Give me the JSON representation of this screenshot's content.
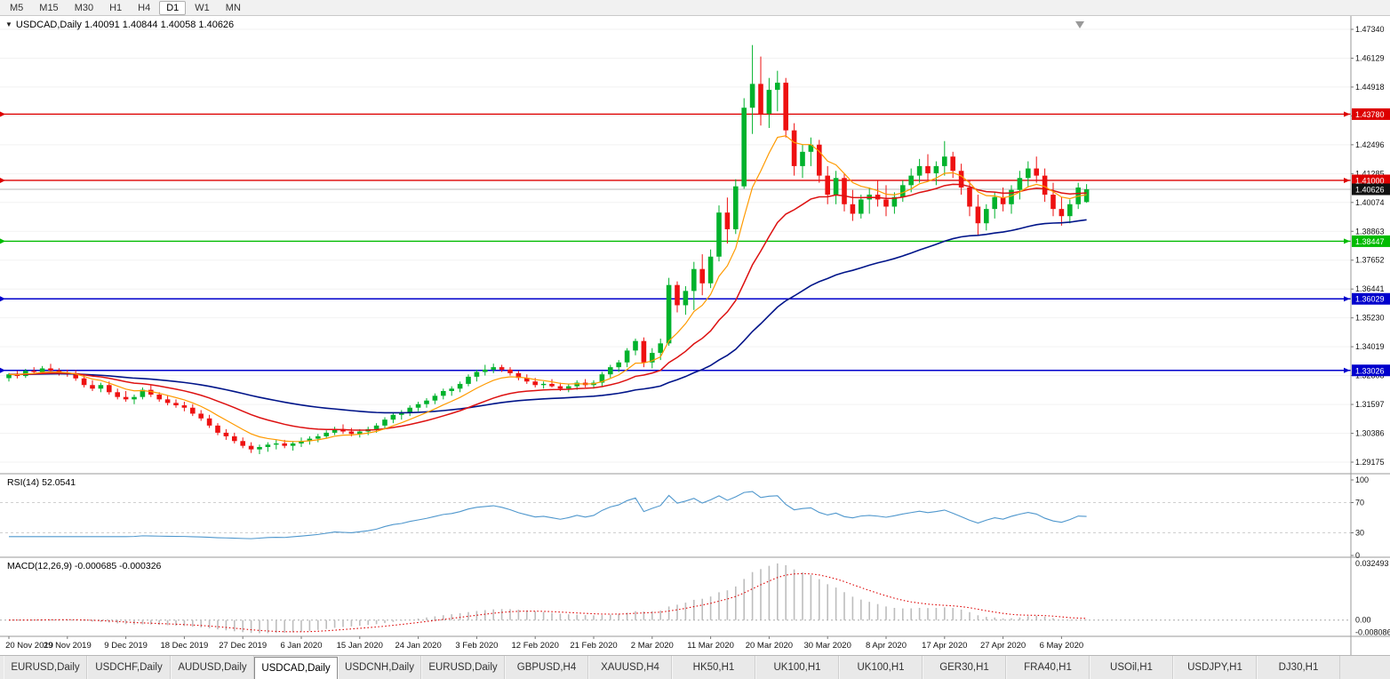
{
  "ui": {
    "menu_caret": "▼"
  },
  "toolbar": {
    "timeframes": [
      "M5",
      "M15",
      "M30",
      "H1",
      "H4",
      "D1",
      "W1",
      "MN"
    ],
    "active": "D1"
  },
  "chart": {
    "title": "USDCAD,Daily",
    "ohlc": "1.40091 1.40844 1.40058 1.40626"
  },
  "colors": {
    "up": "#00b22c",
    "down": "#ee1111",
    "ma_fast": "#ff9a00",
    "ma_mid": "#dd1111",
    "ma_slow": "#001489",
    "rsi": "#4f97cd",
    "macd_hist": "#bdbdbd",
    "macd_signal": "#dd0000",
    "grid": "#f2f2f2",
    "separator": "#9a9a9a",
    "axis_text": "#111111",
    "current_price_line": "#b8b8b8",
    "current_badge": "#111111",
    "rsi_level_line": "#cfcfcf",
    "tick": "#777777"
  },
  "chart_data": {
    "type": "candlestick",
    "title": "USDCAD,Daily",
    "price_axis": {
      "min": 1.29175,
      "max": 1.4734,
      "labels": [
        "1.47340",
        "1.46129",
        "1.44918",
        "1.43707",
        "1.42496",
        "1.41285",
        "1.40074",
        "1.38863",
        "1.37652",
        "1.36441",
        "1.35230",
        "1.34019",
        "1.32808",
        "1.31597",
        "1.30386",
        "1.29175"
      ]
    },
    "x_labels": [
      {
        "i": 0,
        "t": "20 Nov 2019"
      },
      {
        "i": 7,
        "t": "29 Nov 2019"
      },
      {
        "i": 14,
        "t": "9 Dec 2019"
      },
      {
        "i": 21,
        "t": "18 Dec 2019"
      },
      {
        "i": 28,
        "t": "27 Dec 2019"
      },
      {
        "i": 35,
        "t": "6 Jan 2020"
      },
      {
        "i": 42,
        "t": "15 Jan 2020"
      },
      {
        "i": 49,
        "t": "24 Jan 2020"
      },
      {
        "i": 56,
        "t": "3 Feb 2020"
      },
      {
        "i": 63,
        "t": "12 Feb 2020"
      },
      {
        "i": 70,
        "t": "21 Feb 2020"
      },
      {
        "i": 77,
        "t": "2 Mar 2020"
      },
      {
        "i": 84,
        "t": "11 Mar 2020"
      },
      {
        "i": 91,
        "t": "20 Mar 2020"
      },
      {
        "i": 98,
        "t": "30 Mar 2020"
      },
      {
        "i": 105,
        "t": "8 Apr 2020"
      },
      {
        "i": 112,
        "t": "17 Apr 2020"
      },
      {
        "i": 119,
        "t": "27 Apr 2020"
      },
      {
        "i": 126,
        "t": "6 May 2020"
      }
    ],
    "candles": [
      [
        1.327,
        1.3292,
        1.3256,
        1.3286
      ],
      [
        1.3286,
        1.3301,
        1.3269,
        1.3279
      ],
      [
        1.3279,
        1.3309,
        1.3271,
        1.3301
      ],
      [
        1.3301,
        1.3316,
        1.3286,
        1.3296
      ],
      [
        1.3296,
        1.3321,
        1.3287,
        1.3311
      ],
      [
        1.3311,
        1.333,
        1.3296,
        1.3302
      ],
      [
        1.3302,
        1.3312,
        1.3281,
        1.3291
      ],
      [
        1.3291,
        1.3306,
        1.3276,
        1.3286
      ],
      [
        1.3286,
        1.3304,
        1.3259,
        1.3269
      ],
      [
        1.3269,
        1.3281,
        1.3231,
        1.3241
      ],
      [
        1.3241,
        1.3261,
        1.3216,
        1.3226
      ],
      [
        1.3226,
        1.3251,
        1.3211,
        1.3241
      ],
      [
        1.3241,
        1.3256,
        1.3201,
        1.3211
      ],
      [
        1.3211,
        1.3226,
        1.3181,
        1.3191
      ],
      [
        1.3191,
        1.3216,
        1.3171,
        1.3181
      ],
      [
        1.3181,
        1.3201,
        1.3161,
        1.3191
      ],
      [
        1.3191,
        1.3231,
        1.3181,
        1.3221
      ],
      [
        1.3221,
        1.3241,
        1.3191,
        1.3201
      ],
      [
        1.3201,
        1.3211,
        1.3171,
        1.3181
      ],
      [
        1.3181,
        1.3196,
        1.3156,
        1.3166
      ],
      [
        1.3166,
        1.3181,
        1.3146,
        1.3156
      ],
      [
        1.3156,
        1.3171,
        1.3131,
        1.3146
      ],
      [
        1.3146,
        1.3161,
        1.3111,
        1.3121
      ],
      [
        1.3121,
        1.3136,
        1.3091,
        1.3101
      ],
      [
        1.3101,
        1.3116,
        1.3061,
        1.3071
      ],
      [
        1.3071,
        1.3081,
        1.3031,
        1.3041
      ],
      [
        1.3041,
        1.3056,
        1.3011,
        1.3026
      ],
      [
        1.3026,
        1.3041,
        1.2996,
        1.3006
      ],
      [
        1.3006,
        1.3021,
        1.2976,
        1.2986
      ],
      [
        1.2986,
        1.3001,
        1.2956,
        1.2971
      ],
      [
        1.2971,
        1.2991,
        1.2951,
        1.2981
      ],
      [
        1.2981,
        1.3001,
        1.2961,
        1.2991
      ],
      [
        1.2991,
        1.3011,
        1.2971,
        1.2996
      ],
      [
        1.2996,
        1.3011,
        1.2976,
        1.2986
      ],
      [
        1.2986,
        1.3006,
        1.2966,
        1.2996
      ],
      [
        1.2996,
        1.3021,
        1.2981,
        1.3006
      ],
      [
        1.3006,
        1.3026,
        1.2991,
        1.3016
      ],
      [
        1.3016,
        1.3036,
        1.3001,
        1.3026
      ],
      [
        1.3026,
        1.3051,
        1.3016,
        1.3041
      ],
      [
        1.3041,
        1.3066,
        1.3031,
        1.3056
      ],
      [
        1.3056,
        1.3076,
        1.3036,
        1.3046
      ],
      [
        1.3046,
        1.3061,
        1.3026,
        1.3036
      ],
      [
        1.3036,
        1.3056,
        1.3021,
        1.3046
      ],
      [
        1.3046,
        1.3066,
        1.3031,
        1.3056
      ],
      [
        1.3056,
        1.3081,
        1.3041,
        1.3071
      ],
      [
        1.3071,
        1.3106,
        1.3056,
        1.3096
      ],
      [
        1.3096,
        1.3126,
        1.3081,
        1.3116
      ],
      [
        1.3116,
        1.3136,
        1.3096,
        1.3126
      ],
      [
        1.3126,
        1.3156,
        1.3111,
        1.3146
      ],
      [
        1.3146,
        1.3171,
        1.3131,
        1.3161
      ],
      [
        1.3161,
        1.3186,
        1.3146,
        1.3176
      ],
      [
        1.3176,
        1.3206,
        1.3161,
        1.3196
      ],
      [
        1.3196,
        1.3226,
        1.3181,
        1.3216
      ],
      [
        1.3216,
        1.3236,
        1.3196,
        1.3226
      ],
      [
        1.3226,
        1.3256,
        1.3211,
        1.3246
      ],
      [
        1.3246,
        1.3286,
        1.3236,
        1.3276
      ],
      [
        1.3276,
        1.3306,
        1.3256,
        1.3296
      ],
      [
        1.3296,
        1.3326,
        1.3281,
        1.3306
      ],
      [
        1.3306,
        1.3331,
        1.3291,
        1.3316
      ],
      [
        1.3316,
        1.3326,
        1.3296,
        1.3306
      ],
      [
        1.3306,
        1.3316,
        1.3281,
        1.3291
      ],
      [
        1.3291,
        1.3301,
        1.3261,
        1.3271
      ],
      [
        1.3271,
        1.3286,
        1.3246,
        1.3256
      ],
      [
        1.3256,
        1.3271,
        1.3231,
        1.3241
      ],
      [
        1.3241,
        1.3256,
        1.3226,
        1.3246
      ],
      [
        1.3246,
        1.3266,
        1.3231,
        1.3236
      ],
      [
        1.3236,
        1.3251,
        1.3216,
        1.3226
      ],
      [
        1.3226,
        1.3246,
        1.3211,
        1.3236
      ],
      [
        1.3236,
        1.3261,
        1.3221,
        1.3251
      ],
      [
        1.3251,
        1.3266,
        1.3231,
        1.3241
      ],
      [
        1.3241,
        1.3261,
        1.3226,
        1.3251
      ],
      [
        1.3251,
        1.3296,
        1.3236,
        1.3286
      ],
      [
        1.3286,
        1.3326,
        1.3271,
        1.3316
      ],
      [
        1.3316,
        1.3346,
        1.3296,
        1.3336
      ],
      [
        1.3336,
        1.3396,
        1.3316,
        1.3386
      ],
      [
        1.3386,
        1.3436,
        1.3366,
        1.3426
      ],
      [
        1.3426,
        1.3441,
        1.3316,
        1.3336
      ],
      [
        1.3336,
        1.3396,
        1.3311,
        1.3376
      ],
      [
        1.3376,
        1.3436,
        1.3346,
        1.3416
      ],
      [
        1.3416,
        1.3691,
        1.3406,
        1.3661
      ],
      [
        1.3661,
        1.3676,
        1.3546,
        1.3576
      ],
      [
        1.3576,
        1.3656,
        1.3536,
        1.3636
      ],
      [
        1.3636,
        1.3758,
        1.3556,
        1.3728
      ],
      [
        1.3728,
        1.379,
        1.3618,
        1.3668
      ],
      [
        1.3668,
        1.381,
        1.3648,
        1.378
      ],
      [
        1.378,
        1.3995,
        1.376,
        1.3965
      ],
      [
        1.3965,
        1.4028,
        1.3835,
        1.3895
      ],
      [
        1.3895,
        1.4105,
        1.3875,
        1.4075
      ],
      [
        1.4075,
        1.4445,
        1.4065,
        1.4405
      ],
      [
        1.4405,
        1.4668,
        1.4295,
        1.4505
      ],
      [
        1.4505,
        1.462,
        1.433,
        1.438
      ],
      [
        1.438,
        1.453,
        1.432,
        1.448
      ],
      [
        1.448,
        1.456,
        1.439,
        1.451
      ],
      [
        1.451,
        1.453,
        1.428,
        1.431
      ],
      [
        1.431,
        1.434,
        1.412,
        1.416
      ],
      [
        1.416,
        1.425,
        1.411,
        1.422
      ],
      [
        1.422,
        1.428,
        1.416,
        1.425
      ],
      [
        1.425,
        1.427,
        1.409,
        1.412
      ],
      [
        1.412,
        1.416,
        1.4,
        1.404
      ],
      [
        1.404,
        1.414,
        1.4,
        1.411
      ],
      [
        1.411,
        1.413,
        1.397,
        1.4
      ],
      [
        1.4,
        1.406,
        1.393,
        1.396
      ],
      [
        1.396,
        1.404,
        1.394,
        1.402
      ],
      [
        1.402,
        1.407,
        1.396,
        1.404
      ],
      [
        1.404,
        1.41,
        1.399,
        1.402
      ],
      [
        1.402,
        1.408,
        1.395,
        1.399
      ],
      [
        1.399,
        1.405,
        1.396,
        1.403
      ],
      [
        1.403,
        1.41,
        1.401,
        1.408
      ],
      [
        1.408,
        1.415,
        1.405,
        1.412
      ],
      [
        1.412,
        1.419,
        1.409,
        1.416
      ],
      [
        1.416,
        1.421,
        1.41,
        1.413
      ],
      [
        1.413,
        1.418,
        1.408,
        1.416
      ],
      [
        1.416,
        1.4265,
        1.412,
        1.42
      ],
      [
        1.42,
        1.422,
        1.411,
        1.414
      ],
      [
        1.414,
        1.417,
        1.404,
        1.407
      ],
      [
        1.407,
        1.41,
        1.395,
        1.399
      ],
      [
        1.399,
        1.404,
        1.387,
        1.392
      ],
      [
        1.392,
        1.4,
        1.389,
        1.398
      ],
      [
        1.398,
        1.405,
        1.394,
        1.403
      ],
      [
        1.403,
        1.407,
        1.397,
        1.4
      ],
      [
        1.4,
        1.408,
        1.396,
        1.406
      ],
      [
        1.406,
        1.414,
        1.402,
        1.411
      ],
      [
        1.411,
        1.418,
        1.407,
        1.415
      ],
      [
        1.415,
        1.42,
        1.409,
        1.412
      ],
      [
        1.412,
        1.415,
        1.401,
        1.404
      ],
      [
        1.404,
        1.409,
        1.395,
        1.398
      ],
      [
        1.398,
        1.403,
        1.391,
        1.395
      ],
      [
        1.395,
        1.402,
        1.392,
        1.4
      ],
      [
        1.4,
        1.409,
        1.398,
        1.407
      ],
      [
        1.40091,
        1.40844,
        1.40058,
        1.40626
      ]
    ],
    "overlays": {
      "fast": {
        "type": "ema",
        "period": 8,
        "color": "#ff9a00"
      },
      "mid": {
        "type": "ema",
        "period": 21,
        "color": "#dd1111"
      },
      "slow": {
        "type": "ema",
        "period": 55,
        "color": "#001489"
      }
    },
    "hlines": [
      {
        "price": 1.4378,
        "label": "1.43780",
        "color": "#dd0000"
      },
      {
        "price": 1.41,
        "label": "1.41000",
        "color": "#dd0000"
      },
      {
        "price": 1.38447,
        "label": "1.38447",
        "color": "#00bb00"
      },
      {
        "price": 1.36029,
        "label": "1.36029",
        "color": "#0000cc"
      },
      {
        "price": 1.33026,
        "label": "1.33026",
        "color": "#0000cc"
      }
    ],
    "current_price": {
      "value": 1.40626,
      "label": "1.40626"
    },
    "rsi": {
      "name": "RSI(14)",
      "period": 14,
      "value_display": "52.0541",
      "levels": [
        "100",
        "70",
        "30",
        "0"
      ]
    },
    "macd": {
      "name": "MACD(12,26,9)",
      "fast": 12,
      "slow": 26,
      "signal": 9,
      "values_display": "-0.000685 -0.000326",
      "axis_labels": [
        "0.032493",
        "0.00",
        "-0.008086"
      ]
    }
  },
  "tabs": [
    {
      "label": "EURUSD,Daily",
      "active": false
    },
    {
      "label": "USDCHF,Daily",
      "active": false
    },
    {
      "label": "AUDUSD,Daily",
      "active": false
    },
    {
      "label": "USDCAD,Daily",
      "active": true
    },
    {
      "label": "USDCNH,Daily",
      "active": false
    },
    {
      "label": "EURUSD,Daily",
      "active": false
    },
    {
      "label": "GBPUSD,H4",
      "active": false
    },
    {
      "label": "XAUUSD,H4",
      "active": false
    },
    {
      "label": "HK50,H1",
      "active": false
    },
    {
      "label": "UK100,H1",
      "active": false
    },
    {
      "label": "UK100,H1",
      "active": false
    },
    {
      "label": "GER30,H1",
      "active": false
    },
    {
      "label": "FRA40,H1",
      "active": false
    },
    {
      "label": "USOil,H1",
      "active": false
    },
    {
      "label": "USDJPY,H1",
      "active": false
    },
    {
      "label": "DJ30,H1",
      "active": false
    }
  ]
}
